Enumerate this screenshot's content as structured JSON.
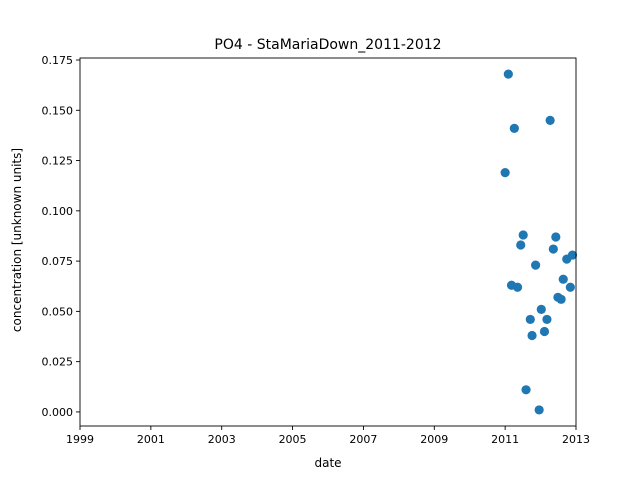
{
  "chart_data": {
    "type": "scatter",
    "title": "PO4 - StaMariaDown_2011-2012",
    "xlabel": "date",
    "ylabel": "concentration [unknown units]",
    "xlim": [
      1999,
      2013
    ],
    "ylim": [
      -0.007,
      0.176
    ],
    "x_ticks": [
      "1999",
      "2001",
      "2003",
      "2005",
      "2007",
      "2009",
      "2011",
      "2013"
    ],
    "y_ticks": [
      "0.000",
      "0.025",
      "0.050",
      "0.075",
      "0.100",
      "0.125",
      "0.150",
      "0.175"
    ],
    "grid": false,
    "marker_color": "#1f77b4",
    "series": [
      {
        "points": [
          {
            "x": 2011.0,
            "y": 0.119
          },
          {
            "x": 2011.09,
            "y": 0.168
          },
          {
            "x": 2011.18,
            "y": 0.063
          },
          {
            "x": 2011.26,
            "y": 0.141
          },
          {
            "x": 2011.35,
            "y": 0.062
          },
          {
            "x": 2011.44,
            "y": 0.083
          },
          {
            "x": 2011.51,
            "y": 0.088
          },
          {
            "x": 2011.59,
            "y": 0.011
          },
          {
            "x": 2011.71,
            "y": 0.046
          },
          {
            "x": 2011.76,
            "y": 0.038
          },
          {
            "x": 2011.86,
            "y": 0.073
          },
          {
            "x": 2011.96,
            "y": 0.001
          },
          {
            "x": 2012.02,
            "y": 0.051
          },
          {
            "x": 2012.11,
            "y": 0.04
          },
          {
            "x": 2012.18,
            "y": 0.046
          },
          {
            "x": 2012.27,
            "y": 0.145
          },
          {
            "x": 2012.36,
            "y": 0.081
          },
          {
            "x": 2012.43,
            "y": 0.087
          },
          {
            "x": 2012.49,
            "y": 0.057
          },
          {
            "x": 2012.58,
            "y": 0.056
          },
          {
            "x": 2012.64,
            "y": 0.066
          },
          {
            "x": 2012.74,
            "y": 0.076
          },
          {
            "x": 2012.84,
            "y": 0.062
          },
          {
            "x": 2012.9,
            "y": 0.078
          }
        ]
      }
    ]
  }
}
